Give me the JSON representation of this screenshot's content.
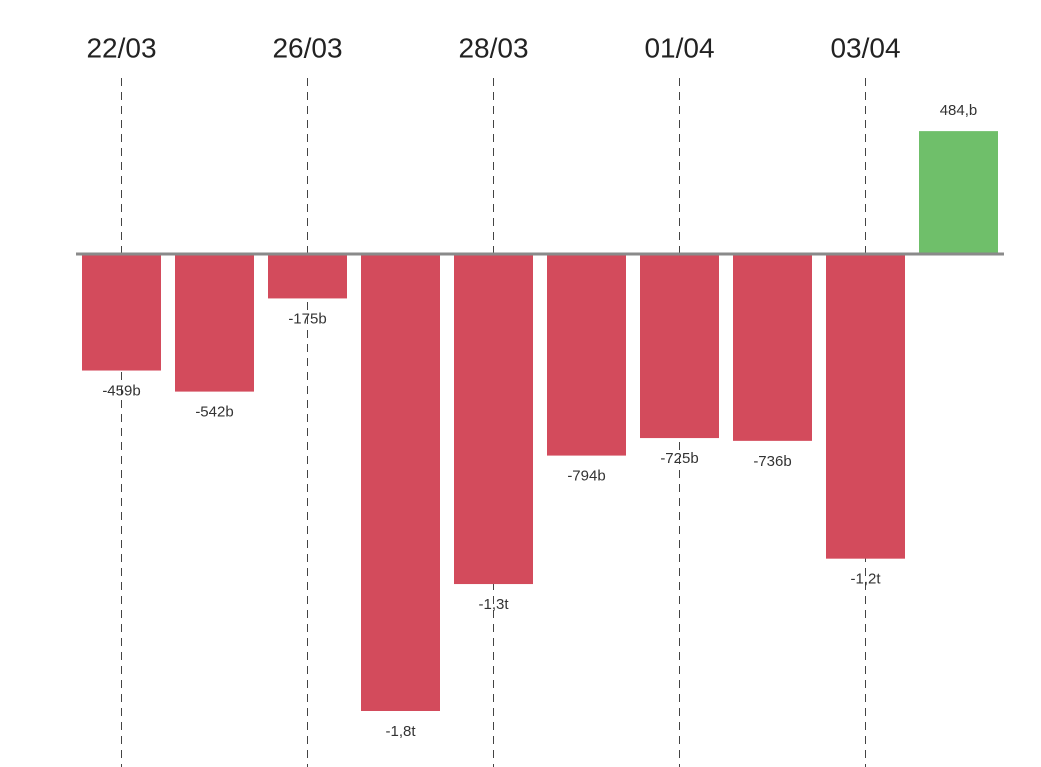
{
  "chart_data": {
    "type": "bar",
    "categories": [
      "22/03",
      null,
      "26/03",
      null,
      "28/03",
      null,
      "01/04",
      null,
      "03/04",
      null
    ],
    "values": [
      -459,
      -542,
      -175,
      -1800,
      -1300,
      -794,
      -725,
      -736,
      -1200,
      484
    ],
    "value_labels": [
      "-459b",
      "-542b",
      "-175b",
      "-1,8t",
      "-1,3t",
      "-794b",
      "-725b",
      "-736b",
      "-1,2t",
      "484,b"
    ],
    "positive_color": "#6fbf6a",
    "negative_color": "#d34b5c"
  }
}
